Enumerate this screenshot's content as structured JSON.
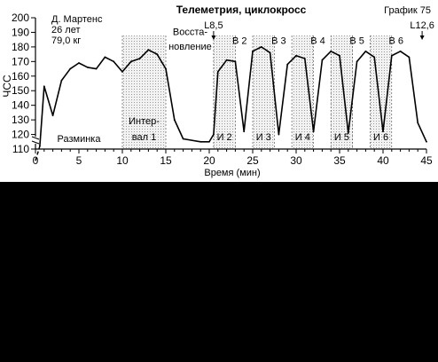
{
  "chart_data": {
    "type": "line",
    "title": "Телеметрия, циклокросс",
    "corner_label": "График 75",
    "athlete": {
      "name": "Д. Мартенс",
      "age": "26 лет",
      "weight": "79,0 кг"
    },
    "xlabel": "Время (мин)",
    "ylabel": "ЧСС",
    "xlim": [
      0,
      45
    ],
    "ylim": [
      110,
      200
    ],
    "x_ticks": [
      0,
      5,
      10,
      15,
      20,
      25,
      30,
      35,
      40,
      45
    ],
    "y_ticks": [
      110,
      120,
      130,
      140,
      150,
      160,
      170,
      180,
      190,
      200
    ],
    "grid": false,
    "series": [
      {
        "name": "",
        "x": [
          0.5,
          1,
          2,
          3,
          4,
          5,
          6,
          7,
          8,
          9,
          10,
          11,
          12,
          13,
          14,
          15,
          16,
          17,
          19,
          20,
          20.5,
          21,
          22,
          23,
          24,
          25,
          26,
          27,
          28,
          29,
          30,
          31,
          32,
          33,
          34,
          35,
          36,
          37,
          38,
          39,
          40,
          41,
          42,
          43,
          44,
          45
        ],
        "y": [
          112,
          153,
          133,
          157,
          165,
          169,
          166,
          165,
          173,
          170,
          163,
          170,
          172,
          178,
          175,
          165,
          130,
          117,
          115,
          115,
          120,
          163,
          171,
          170,
          122,
          177,
          180,
          176,
          120,
          168,
          174,
          172,
          122,
          171,
          177,
          174,
          121,
          170,
          177,
          173,
          122,
          174,
          177,
          173,
          128,
          115
        ]
      }
    ],
    "warmup_segment": {
      "x": [
        0,
        0.5
      ],
      "y": [
        102,
        112
      ],
      "style": "dashed"
    },
    "shaded_intervals": [
      {
        "start": 10,
        "end": 15,
        "label": "Интер-вал 1"
      },
      {
        "start": 20.5,
        "end": 23,
        "label": "И 2"
      },
      {
        "start": 25,
        "end": 27.5,
        "label": "И 3"
      },
      {
        "start": 29.5,
        "end": 32,
        "label": "И 4"
      },
      {
        "start": 34,
        "end": 36.5,
        "label": "И 5"
      },
      {
        "start": 38.5,
        "end": 41,
        "label": "И 6"
      }
    ],
    "recovery_labels": [
      {
        "x": 23.5,
        "label": "В 2"
      },
      {
        "x": 28,
        "label": "В 3"
      },
      {
        "x": 32.5,
        "label": "В 4"
      },
      {
        "x": 37,
        "label": "В 5"
      },
      {
        "x": 41.5,
        "label": "В 6"
      }
    ],
    "phase_labels": [
      {
        "x": 5,
        "y": 115,
        "label": "Разминка"
      },
      {
        "x": 17.8,
        "y": 188,
        "label": "Восста-"
      },
      {
        "x": 17.8,
        "y": 178,
        "label": "новление"
      }
    ],
    "markers": [
      {
        "x": 20.5,
        "label": "L8,5"
      },
      {
        "x": 44.5,
        "label": "L12,6"
      }
    ]
  }
}
